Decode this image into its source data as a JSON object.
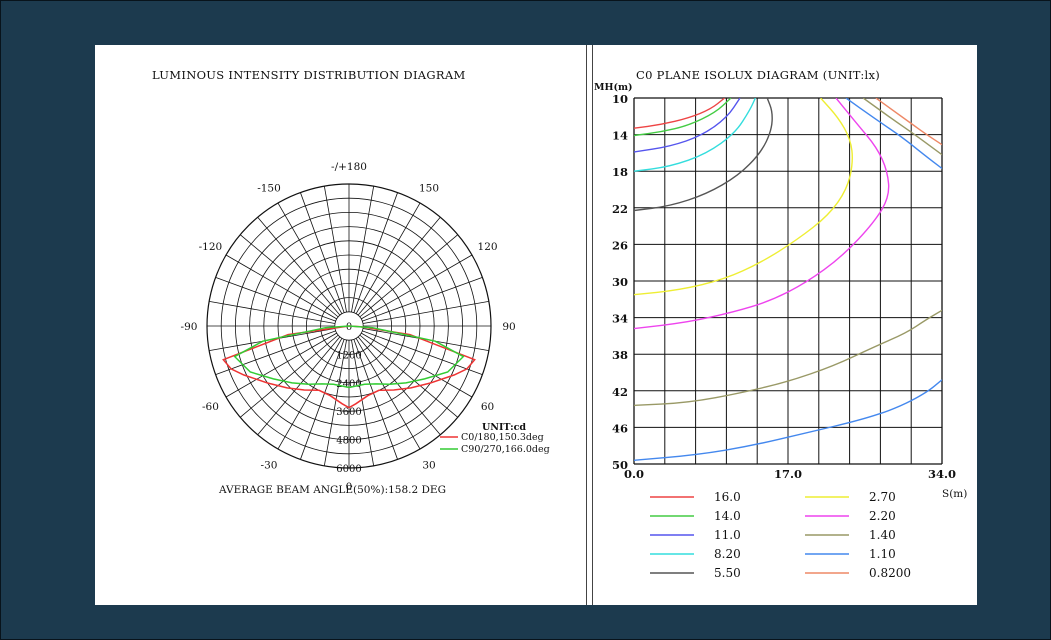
{
  "chart_data": [
    {
      "type": "polar",
      "title": "LUMINOUS INTENSITY DISTRIBUTION DIAGRAM",
      "angle_labels": [
        {
          "angle": 180,
          "text": "-/+180"
        },
        {
          "angle": -150,
          "text": "-150"
        },
        {
          "angle": 150,
          "text": "150"
        },
        {
          "angle": -120,
          "text": "-120"
        },
        {
          "angle": 120,
          "text": "120"
        },
        {
          "angle": -90,
          "text": "-90"
        },
        {
          "angle": 90,
          "text": "90"
        },
        {
          "angle": -60,
          "text": "-60"
        },
        {
          "angle": 60,
          "text": "60"
        },
        {
          "angle": -30,
          "text": "-30"
        },
        {
          "angle": 30,
          "text": "30"
        },
        {
          "angle": 0,
          "text": "0"
        }
      ],
      "radial_max": 6000,
      "radial_ticks": [
        0,
        1200,
        2400,
        3600,
        4800,
        6000
      ],
      "radial_tick_labels": [
        "0",
        "1200",
        "2400",
        "3600",
        "4800",
        "6000"
      ],
      "unit_label": "UNIT:cd",
      "series": [
        {
          "name": "C0/180,150.3deg",
          "color": "#ee3333",
          "points": [
            [
              -82,
              2600
            ],
            [
              -75,
              5500
            ],
            [
              -70,
              5300
            ],
            [
              -65,
              4900
            ],
            [
              -55,
              4200
            ],
            [
              -45,
              3700
            ],
            [
              -35,
              3300
            ],
            [
              -25,
              3000
            ],
            [
              -15,
              3050
            ],
            [
              -5,
              3300
            ],
            [
              0,
              3450
            ],
            [
              5,
              3300
            ],
            [
              15,
              3050
            ],
            [
              25,
              3000
            ],
            [
              35,
              3300
            ],
            [
              45,
              3700
            ],
            [
              55,
              4200
            ],
            [
              65,
              4900
            ],
            [
              70,
              5300
            ],
            [
              75,
              5500
            ],
            [
              82,
              2600
            ],
            [
              86,
              500
            ]
          ]
        },
        {
          "name": "C90/270,166.0deg",
          "color": "#33cc33",
          "points": [
            [
              -86,
              1000
            ],
            [
              -80,
              3700
            ],
            [
              -75,
              5000
            ],
            [
              -65,
              4600
            ],
            [
              -55,
              3900
            ],
            [
              -45,
              3400
            ],
            [
              -35,
              3000
            ],
            [
              -25,
              2700
            ],
            [
              -15,
              2550
            ],
            [
              0,
              2600
            ],
            [
              15,
              2550
            ],
            [
              25,
              2700
            ],
            [
              35,
              3000
            ],
            [
              45,
              3400
            ],
            [
              55,
              3900
            ],
            [
              65,
              4600
            ],
            [
              75,
              5000
            ],
            [
              80,
              3700
            ],
            [
              86,
              1000
            ]
          ]
        }
      ],
      "beam_angle_text": "AVERAGE BEAM ANGLE(50%):158.2 DEG"
    },
    {
      "type": "contour",
      "title": "C0 PLANE ISOLUX DIAGRAM (UNIT:lx)",
      "xlabel": "S(m)",
      "ylabel": "MH(m)",
      "xlim": [
        0,
        34
      ],
      "ylim": [
        10,
        50
      ],
      "x_tick_labels": [
        "0.0",
        "17.0",
        "34.0"
      ],
      "x_tick_values": [
        0,
        17,
        34
      ],
      "y_ticks": [
        10,
        14,
        18,
        22,
        26,
        30,
        34,
        38,
        42,
        46,
        50
      ],
      "y_tick_labels": [
        "10",
        "14",
        "18",
        "22",
        "26",
        "30",
        "34",
        "38",
        "42",
        "46",
        "50"
      ],
      "grid": true,
      "series": [
        {
          "name": "16.0",
          "color": "#ee4444",
          "points": [
            [
              0,
              13.3
            ],
            [
              3,
              12.9
            ],
            [
              6,
              12.2
            ],
            [
              8.5,
              11.2
            ],
            [
              10,
              10
            ]
          ]
        },
        {
          "name": "14.0",
          "color": "#44cc44",
          "points": [
            [
              0,
              14.1
            ],
            [
              3,
              13.7
            ],
            [
              6,
              13
            ],
            [
              9,
              11.6
            ],
            [
              10.7,
              10
            ]
          ]
        },
        {
          "name": "11.0",
          "color": "#5555ee",
          "points": [
            [
              0,
              15.9
            ],
            [
              4,
              15.3
            ],
            [
              7.5,
              14.1
            ],
            [
              10.3,
              12.1
            ],
            [
              11.7,
              10
            ]
          ]
        },
        {
          "name": "8.20",
          "color": "#33dddd",
          "points": [
            [
              0,
              18
            ],
            [
              4,
              17.5
            ],
            [
              8,
              16.1
            ],
            [
              11.2,
              13.8
            ],
            [
              12.8,
              11.3
            ],
            [
              13.4,
              10
            ]
          ]
        },
        {
          "name": "5.50",
          "color": "#555555",
          "points": [
            [
              0,
              22.3
            ],
            [
              4,
              21.8
            ],
            [
              8,
              20.5
            ],
            [
              11.5,
              18.5
            ],
            [
              14,
              16
            ],
            [
              15.2,
              13.5
            ],
            [
              15.3,
              11.5
            ],
            [
              14.7,
              10
            ]
          ]
        },
        {
          "name": "2.70",
          "color": "#eeee33",
          "points": [
            [
              0,
              31.5
            ],
            [
              5,
              31
            ],
            [
              10,
              29.8
            ],
            [
              14,
              28
            ],
            [
              18,
              25.5
            ],
            [
              21.5,
              22.8
            ],
            [
              23.5,
              20
            ],
            [
              24.2,
              17
            ],
            [
              23.9,
              14.5
            ],
            [
              22.6,
              12.2
            ],
            [
              20.6,
              10
            ]
          ]
        },
        {
          "name": "2.20",
          "color": "#ee44ee",
          "points": [
            [
              0,
              35.2
            ],
            [
              6,
              34.5
            ],
            [
              11,
              33.4
            ],
            [
              15,
              32.2
            ],
            [
              19,
              30.2
            ],
            [
              23,
              27.3
            ],
            [
              26.5,
              23.6
            ],
            [
              28.2,
              20.8
            ],
            [
              28,
              18
            ],
            [
              26.8,
              15.4
            ],
            [
              24.6,
              12.8
            ],
            [
              22.3,
              10
            ]
          ]
        },
        {
          "name": "1.40",
          "color": "#999966",
          "points": [
            [
              0,
              43.6
            ],
            [
              6,
              43.3
            ],
            [
              12,
              42.2
            ],
            [
              17,
              41
            ],
            [
              22,
              39.3
            ],
            [
              26.5,
              37.2
            ],
            [
              30,
              35.7
            ],
            [
              32.3,
              34.2
            ],
            [
              34,
              33.2
            ]
          ]
        },
        {
          "name": "1.10",
          "color": "#4488ee",
          "points": [
            [
              0,
              49.6
            ],
            [
              7,
              49
            ],
            [
              13,
              48
            ],
            [
              19,
              46.6
            ],
            [
              25,
              45.2
            ],
            [
              29,
              43.9
            ],
            [
              32.3,
              42.2
            ],
            [
              34,
              40.8
            ]
          ]
        },
        {
          "name": "0.8200",
          "color": "#ee8866",
          "points": [
            [
              26.7,
              10
            ],
            [
              29.5,
              12
            ],
            [
              32,
              13.8
            ],
            [
              34,
              15.1
            ]
          ]
        },
        {
          "name": "",
          "color": "#999966",
          "points": [
            [
              25.3,
              10
            ],
            [
              28.5,
              12.3
            ],
            [
              31,
              14
            ],
            [
              34,
              16.2
            ]
          ]
        },
        {
          "name": "",
          "color": "#4488ee",
          "points": [
            [
              23.4,
              10
            ],
            [
              26.5,
              12.2
            ],
            [
              29.5,
              14.2
            ],
            [
              32,
              16.2
            ],
            [
              34,
              17.7
            ]
          ]
        }
      ],
      "legend": {
        "placement": "bottom",
        "entries": [
          {
            "label": "16.0",
            "color": "#ee4444"
          },
          {
            "label": "2.70",
            "color": "#eeee33"
          },
          {
            "label": "14.0",
            "color": "#44cc44"
          },
          {
            "label": "2.20",
            "color": "#ee44ee"
          },
          {
            "label": "11.0",
            "color": "#5555ee"
          },
          {
            "label": "1.40",
            "color": "#999966"
          },
          {
            "label": "8.20",
            "color": "#33dddd"
          },
          {
            "label": "1.10",
            "color": "#4488ee"
          },
          {
            "label": "5.50",
            "color": "#555555"
          },
          {
            "label": "0.8200",
            "color": "#ee8866"
          }
        ]
      }
    }
  ]
}
